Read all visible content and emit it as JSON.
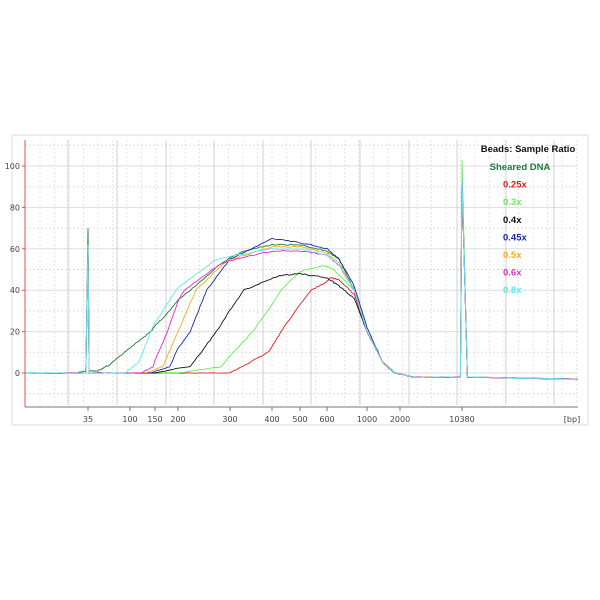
{
  "chart_data": {
    "type": "line",
    "title": "",
    "xlabel": "[bp]",
    "ylabel": "",
    "ylim": [
      -15,
      110
    ],
    "grid": true,
    "legend_placement": "top-right",
    "legend_title": "Beads: Sample Ratio",
    "y_ticks": [
      0,
      20,
      40,
      60,
      80,
      100
    ],
    "x_ticks": [
      "35",
      "100",
      "150",
      "200",
      "300",
      "400",
      "500",
      "600",
      "1000",
      "2000",
      "10380"
    ],
    "x_scale_note": "electropherogram sizing axis",
    "series": [
      {
        "name": "Sheared DNA",
        "color": "#1e7a3a",
        "points": [
          [
            15,
            0
          ],
          [
            30,
            0
          ],
          [
            34,
            1
          ],
          [
            35,
            70
          ],
          [
            36,
            1
          ],
          [
            45,
            1
          ],
          [
            60,
            4
          ],
          [
            100,
            12
          ],
          [
            140,
            20
          ],
          [
            180,
            30
          ],
          [
            220,
            40
          ],
          [
            280,
            53
          ],
          [
            330,
            59
          ],
          [
            400,
            62
          ],
          [
            500,
            62
          ],
          [
            600,
            59
          ],
          [
            700,
            55
          ],
          [
            850,
            40
          ],
          [
            1000,
            20
          ],
          [
            1400,
            5
          ],
          [
            1800,
            0
          ],
          [
            3000,
            -2
          ],
          [
            10000,
            -2
          ],
          [
            10380,
            96
          ],
          [
            10700,
            -2
          ],
          [
            20000,
            -3
          ]
        ]
      },
      {
        "name": "0.25x",
        "color": "#e02020",
        "points": [
          [
            15,
            0
          ],
          [
            34,
            0
          ],
          [
            35,
            60
          ],
          [
            36,
            0
          ],
          [
            200,
            0
          ],
          [
            300,
            0
          ],
          [
            390,
            10
          ],
          [
            430,
            20
          ],
          [
            540,
            40
          ],
          [
            630,
            46
          ],
          [
            700,
            45
          ],
          [
            850,
            38
          ],
          [
            1000,
            20
          ],
          [
            1400,
            5
          ],
          [
            1800,
            0
          ],
          [
            3000,
            -2
          ],
          [
            10000,
            -2
          ],
          [
            10380,
            94
          ],
          [
            10700,
            -2
          ],
          [
            20000,
            -3
          ]
        ]
      },
      {
        "name": "0.3x",
        "color": "#66ee55",
        "points": [
          [
            15,
            0
          ],
          [
            34,
            0
          ],
          [
            35,
            62
          ],
          [
            36,
            0
          ],
          [
            200,
            0
          ],
          [
            280,
            3
          ],
          [
            350,
            20
          ],
          [
            430,
            40
          ],
          [
            500,
            49
          ],
          [
            580,
            52
          ],
          [
            650,
            50
          ],
          [
            850,
            40
          ],
          [
            1000,
            20
          ],
          [
            1400,
            5
          ],
          [
            1800,
            0
          ],
          [
            3000,
            -2
          ],
          [
            10000,
            -2
          ],
          [
            10380,
            103
          ],
          [
            10700,
            -2
          ],
          [
            20000,
            -3
          ]
        ]
      },
      {
        "name": "0.4x",
        "color": "#111111",
        "points": [
          [
            15,
            0
          ],
          [
            34,
            0
          ],
          [
            35,
            60
          ],
          [
            36,
            0
          ],
          [
            150,
            0
          ],
          [
            220,
            3
          ],
          [
            270,
            20
          ],
          [
            330,
            40
          ],
          [
            420,
            47
          ],
          [
            500,
            48
          ],
          [
            600,
            46
          ],
          [
            700,
            42
          ],
          [
            850,
            36
          ],
          [
            1000,
            20
          ],
          [
            1400,
            5
          ],
          [
            1800,
            0
          ],
          [
            3000,
            -2
          ],
          [
            10000,
            -2
          ],
          [
            10380,
            94
          ],
          [
            10700,
            -2
          ],
          [
            20000,
            -3
          ]
        ]
      },
      {
        "name": "0.45x",
        "color": "#1a2aa0",
        "points": [
          [
            15,
            0
          ],
          [
            34,
            0
          ],
          [
            35,
            60
          ],
          [
            36,
            0
          ],
          [
            140,
            0
          ],
          [
            180,
            3
          ],
          [
            220,
            20
          ],
          [
            250,
            40
          ],
          [
            300,
            55
          ],
          [
            400,
            65
          ],
          [
            500,
            63
          ],
          [
            600,
            60
          ],
          [
            700,
            55
          ],
          [
            850,
            42
          ],
          [
            1000,
            22
          ],
          [
            1400,
            5
          ],
          [
            1800,
            0
          ],
          [
            3000,
            -2
          ],
          [
            10000,
            -2
          ],
          [
            10380,
            94
          ],
          [
            10700,
            -2
          ],
          [
            20000,
            -3
          ]
        ]
      },
      {
        "name": "0.5x",
        "color": "#f0b020",
        "points": [
          [
            15,
            0
          ],
          [
            34,
            0
          ],
          [
            35,
            60
          ],
          [
            36,
            0
          ],
          [
            130,
            0
          ],
          [
            165,
            3
          ],
          [
            200,
            20
          ],
          [
            230,
            40
          ],
          [
            290,
            54
          ],
          [
            400,
            61
          ],
          [
            500,
            61
          ],
          [
            600,
            58
          ],
          [
            700,
            53
          ],
          [
            850,
            40
          ],
          [
            1000,
            20
          ],
          [
            1400,
            5
          ],
          [
            1800,
            0
          ],
          [
            3000,
            -2
          ],
          [
            10000,
            -2
          ],
          [
            10380,
            94
          ],
          [
            10700,
            -2
          ],
          [
            20000,
            -3
          ]
        ]
      },
      {
        "name": "0.6x",
        "color": "#e030c0",
        "points": [
          [
            15,
            0
          ],
          [
            34,
            0
          ],
          [
            35,
            60
          ],
          [
            36,
            0
          ],
          [
            120,
            0
          ],
          [
            145,
            3
          ],
          [
            175,
            20
          ],
          [
            210,
            40
          ],
          [
            280,
            53
          ],
          [
            400,
            59
          ],
          [
            500,
            59
          ],
          [
            600,
            57
          ],
          [
            700,
            52
          ],
          [
            850,
            40
          ],
          [
            1000,
            20
          ],
          [
            1400,
            5
          ],
          [
            1800,
            0
          ],
          [
            3000,
            -2
          ],
          [
            10000,
            -2
          ],
          [
            10380,
            94
          ],
          [
            10700,
            -2
          ],
          [
            20000,
            -3
          ]
        ]
      },
      {
        "name": "0.8x",
        "color": "#60e8f0",
        "points": [
          [
            15,
            0
          ],
          [
            34,
            0
          ],
          [
            35,
            60
          ],
          [
            36,
            0
          ],
          [
            90,
            0
          ],
          [
            115,
            5
          ],
          [
            140,
            20
          ],
          [
            195,
            40
          ],
          [
            270,
            55
          ],
          [
            400,
            60
          ],
          [
            500,
            60
          ],
          [
            600,
            57
          ],
          [
            700,
            52
          ],
          [
            850,
            40
          ],
          [
            1000,
            20
          ],
          [
            1400,
            5
          ],
          [
            1800,
            0
          ],
          [
            3000,
            -2
          ],
          [
            10000,
            -2
          ],
          [
            10380,
            94
          ],
          [
            10700,
            -2
          ],
          [
            20000,
            -3
          ]
        ]
      }
    ]
  }
}
